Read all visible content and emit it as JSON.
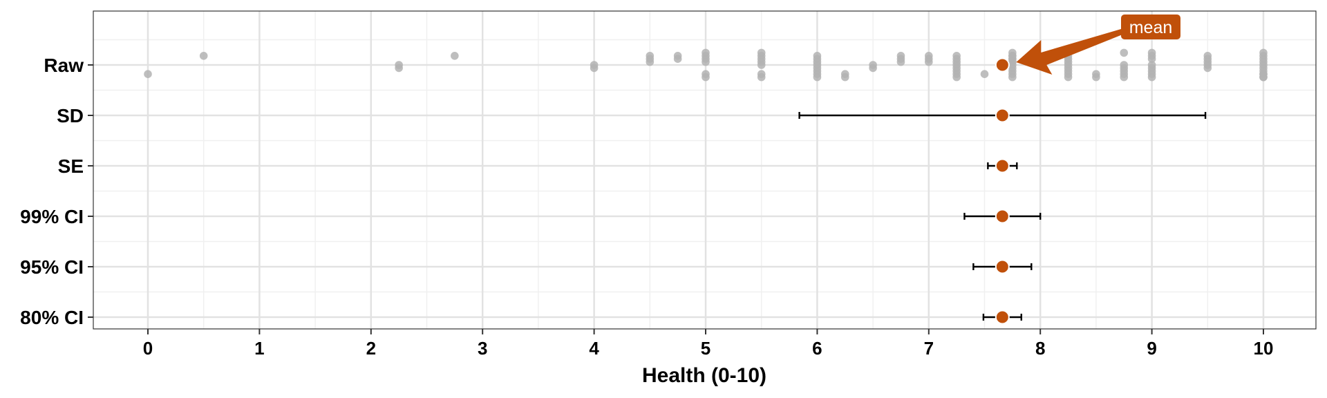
{
  "chart_data": {
    "type": "scatter",
    "xlabel": "Health (0-10)",
    "xlim": [
      -0.5,
      10.5
    ],
    "x_ticks": [
      "0",
      "1",
      "2",
      "3",
      "4",
      "5",
      "6",
      "7",
      "8",
      "9",
      "10"
    ],
    "categories": [
      "Raw",
      "SD",
      "SE",
      "99% CI",
      "95% CI",
      "80% CI"
    ],
    "grid": true,
    "mean": 7.66,
    "raw_points": [
      0,
      0.5,
      2.25,
      2.25,
      2.75,
      4,
      4,
      4.5,
      4.5,
      4.5,
      4.75,
      4.75,
      5,
      5,
      5,
      5,
      5,
      5,
      5.5,
      5.5,
      5.5,
      5.5,
      5.5,
      5.5,
      5.5,
      6,
      6,
      6,
      6,
      6,
      6,
      6,
      6,
      6.25,
      6.25,
      6.5,
      6.5,
      6.75,
      6.75,
      6.75,
      7,
      7,
      7,
      7.25,
      7.25,
      7.25,
      7.25,
      7.25,
      7.25,
      7.25,
      7.25,
      7.5,
      7.75,
      7.75,
      7.75,
      7.75,
      7.75,
      7.75,
      7.75,
      7.75,
      7.75,
      7.75,
      7.75,
      7.75,
      8.25,
      8.25,
      8.25,
      8.25,
      8.25,
      8.25,
      8.25,
      8.25,
      8.5,
      8.5,
      8.75,
      8.75,
      8.75,
      8.75,
      8.75,
      8.75,
      9,
      9,
      9,
      9,
      9,
      9,
      9,
      9,
      9.5,
      9.5,
      9.5,
      9.5,
      9.5,
      10,
      10,
      10,
      10,
      10,
      10,
      10,
      10,
      10,
      10,
      10
    ],
    "series": [
      {
        "category": "SD",
        "mean": 7.66,
        "lower": 5.84,
        "upper": 9.48
      },
      {
        "category": "SE",
        "mean": 7.66,
        "lower": 7.53,
        "upper": 7.79
      },
      {
        "category": "99% CI",
        "mean": 7.66,
        "lower": 7.32,
        "upper": 8.0
      },
      {
        "category": "95% CI",
        "mean": 7.66,
        "lower": 7.4,
        "upper": 7.92
      },
      {
        "category": "80% CI",
        "mean": 7.66,
        "lower": 7.49,
        "upper": 7.83
      }
    ],
    "annotation": {
      "text": "mean",
      "x": 7.66,
      "category": "Raw"
    },
    "colors": {
      "mean_point": "#c0500a",
      "raw_point": "#b3b3b3",
      "annotation_bg": "#c0500a",
      "errorbar": "#000000",
      "grid_major": "#e2e2e2",
      "grid_minor": "#f0f0f0",
      "panel_border": "#333333"
    }
  }
}
